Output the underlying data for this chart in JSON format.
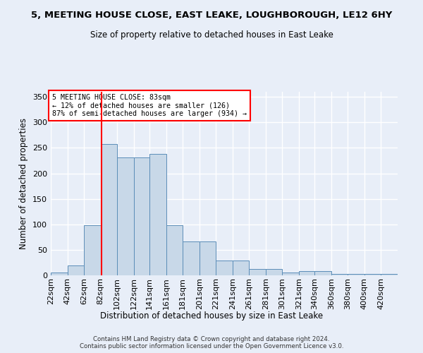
{
  "title": "5, MEETING HOUSE CLOSE, EAST LEAKE, LOUGHBOROUGH, LE12 6HY",
  "subtitle": "Size of property relative to detached houses in East Leake",
  "xlabel": "Distribution of detached houses by size in East Leake",
  "ylabel": "Number of detached properties",
  "bin_labels": [
    "22sqm",
    "42sqm",
    "62sqm",
    "82sqm",
    "102sqm",
    "122sqm",
    "141sqm",
    "161sqm",
    "181sqm",
    "201sqm",
    "221sqm",
    "241sqm",
    "261sqm",
    "281sqm",
    "301sqm",
    "321sqm",
    "340sqm",
    "360sqm",
    "380sqm",
    "400sqm",
    "420sqm"
  ],
  "bin_edges": [
    22,
    42,
    62,
    82,
    102,
    122,
    141,
    161,
    181,
    201,
    221,
    241,
    261,
    281,
    301,
    321,
    340,
    360,
    380,
    400,
    420
  ],
  "bar_heights": [
    6,
    19,
    98,
    258,
    231,
    231,
    238,
    98,
    66,
    66,
    29,
    29,
    13,
    13,
    6,
    9,
    9,
    3,
    3,
    3,
    3
  ],
  "bar_color": "#c8d8e8",
  "bar_edge_color": "#5b8db8",
  "vline_x": 83,
  "vline_color": "red",
  "annotation_text": "5 MEETING HOUSE CLOSE: 83sqm\n← 12% of detached houses are smaller (126)\n87% of semi-detached houses are larger (934) →",
  "annotation_box_color": "white",
  "annotation_box_edge": "red",
  "bg_color": "#e8eef8",
  "grid_color": "#ffffff",
  "footer": "Contains HM Land Registry data © Crown copyright and database right 2024.\nContains public sector information licensed under the Open Government Licence v3.0.",
  "ylim": [
    0,
    360
  ],
  "yticks": [
    0,
    50,
    100,
    150,
    200,
    250,
    300,
    350
  ]
}
